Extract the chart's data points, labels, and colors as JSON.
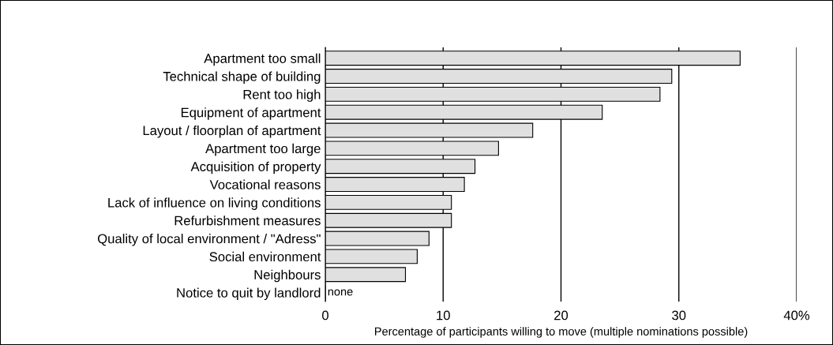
{
  "chart_data": {
    "type": "bar",
    "orientation": "horizontal",
    "xlabel": "Percentage of participants willing to move (multiple nominations possible)",
    "categories": [
      "Apartment too small",
      "Technical shape of building",
      "Rent too high",
      "Equipment of apartment",
      "Layout / floorplan of apartment",
      "Apartment too large",
      "Acquisition of property",
      "Vocational reasons",
      "Lack of influence on living conditions",
      "Refurbishment measures",
      "Quality of local environment / \"Adress\"",
      "Social environment",
      "Neighbours",
      "Notice to quit by landlord"
    ],
    "values": [
      35.2,
      29.4,
      28.4,
      23.5,
      17.6,
      14.7,
      12.7,
      11.8,
      10.7,
      10.7,
      8.8,
      7.8,
      6.8,
      0
    ],
    "value_labels": [
      null,
      null,
      null,
      null,
      null,
      null,
      null,
      null,
      null,
      null,
      null,
      null,
      null,
      "none"
    ],
    "color": "#e0e0e0",
    "xlim": [
      0,
      40
    ],
    "xticks": [
      0,
      10,
      20,
      30,
      {
        "value": 40,
        "label": "40%"
      }
    ],
    "grid": "x"
  }
}
